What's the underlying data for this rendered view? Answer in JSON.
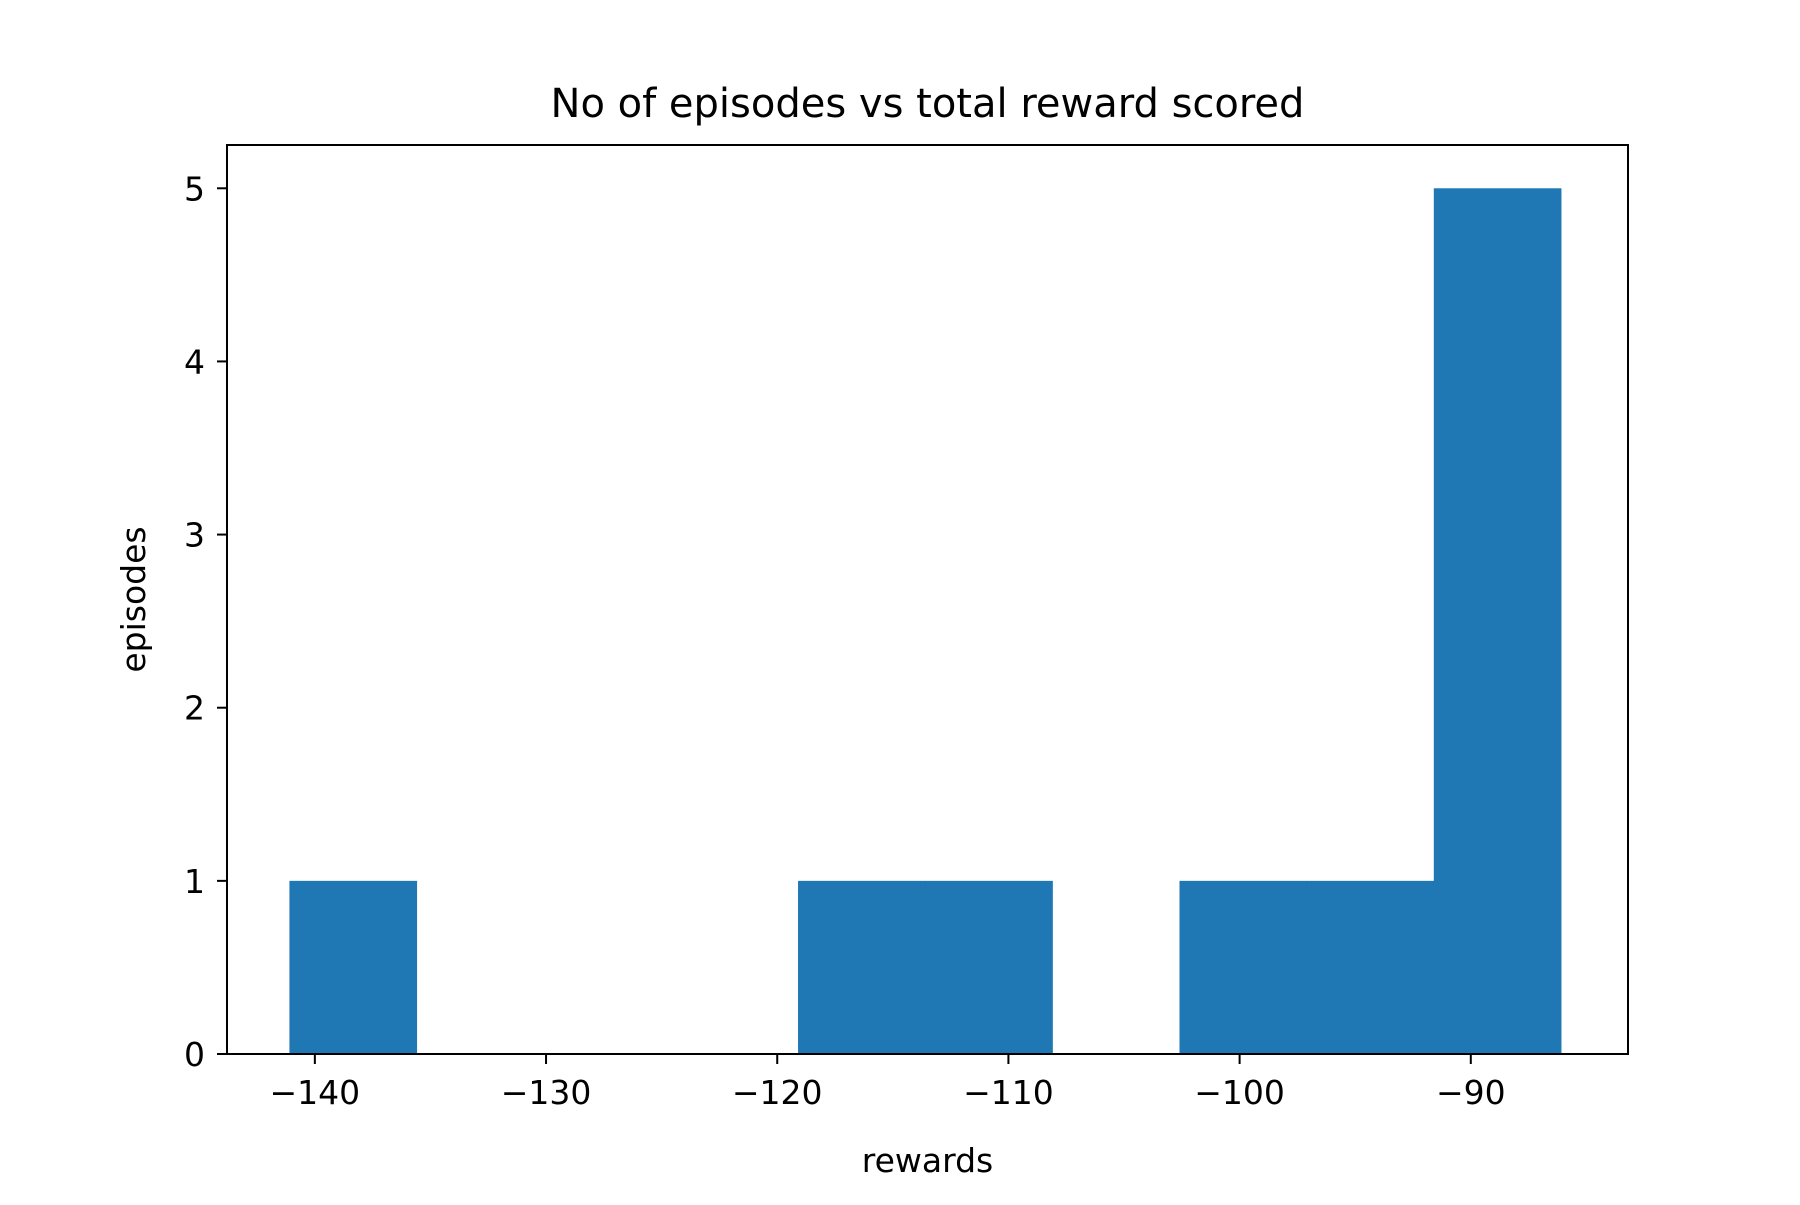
{
  "chart_data": {
    "type": "bar",
    "title": "No of episodes vs total reward scored",
    "xlabel": "rewards",
    "ylabel": "episodes",
    "xlim": [
      -143.8,
      -83.2
    ],
    "ylim": [
      0,
      5.25
    ],
    "xticks": [
      -140,
      -130,
      -120,
      -110,
      -100,
      -90
    ],
    "xtick_labels": [
      "−140",
      "−130",
      "−120",
      "−110",
      "−100",
      "−90"
    ],
    "yticks": [
      0,
      1,
      2,
      3,
      4,
      5
    ],
    "ytick_labels": [
      "0",
      "1",
      "2",
      "3",
      "4",
      "5"
    ],
    "bar_color": "#1f77b4",
    "grid": false,
    "bins": [
      {
        "x0": -141.1,
        "x1": -135.6,
        "value": 1
      },
      {
        "x0": -135.6,
        "x1": -130.1,
        "value": 0
      },
      {
        "x0": -130.1,
        "x1": -124.6,
        "value": 0
      },
      {
        "x0": -124.6,
        "x1": -119.1,
        "value": 0
      },
      {
        "x0": -119.1,
        "x1": -113.6,
        "value": 1
      },
      {
        "x0": -113.6,
        "x1": -108.1,
        "value": 1
      },
      {
        "x0": -108.1,
        "x1": -102.6,
        "value": 0
      },
      {
        "x0": -102.6,
        "x1": -97.1,
        "value": 1
      },
      {
        "x0": -97.1,
        "x1": -91.6,
        "value": 1
      },
      {
        "x0": -91.6,
        "x1": -86.1,
        "value": 5
      }
    ]
  }
}
